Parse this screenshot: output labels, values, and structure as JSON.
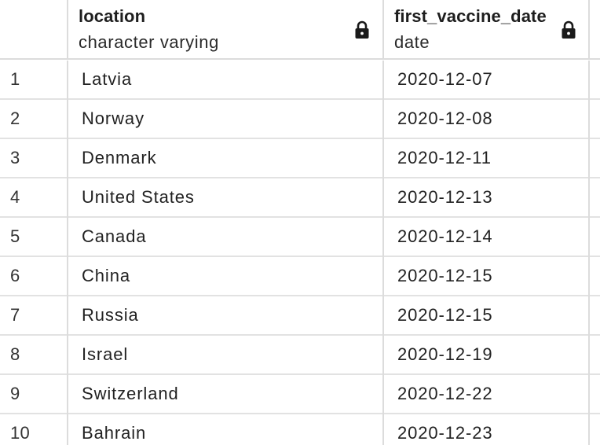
{
  "columns": [
    {
      "name": "location",
      "type": "character varying",
      "icon": "lock-icon"
    },
    {
      "name": "first_vaccine_date",
      "type": "date",
      "icon": "lock-icon"
    }
  ],
  "rows": [
    {
      "num": "1",
      "location": "Latvia",
      "first_vaccine_date": "2020-12-07"
    },
    {
      "num": "2",
      "location": "Norway",
      "first_vaccine_date": "2020-12-08"
    },
    {
      "num": "3",
      "location": "Denmark",
      "first_vaccine_date": "2020-12-11"
    },
    {
      "num": "4",
      "location": "United States",
      "first_vaccine_date": "2020-12-13"
    },
    {
      "num": "5",
      "location": "Canada",
      "first_vaccine_date": "2020-12-14"
    },
    {
      "num": "6",
      "location": "China",
      "first_vaccine_date": "2020-12-15"
    },
    {
      "num": "7",
      "location": "Russia",
      "first_vaccine_date": "2020-12-15"
    },
    {
      "num": "8",
      "location": "Israel",
      "first_vaccine_date": "2020-12-19"
    },
    {
      "num": "9",
      "location": "Switzerland",
      "first_vaccine_date": "2020-12-22"
    },
    {
      "num": "10",
      "location": "Bahrain",
      "first_vaccine_date": "2020-12-23"
    }
  ]
}
